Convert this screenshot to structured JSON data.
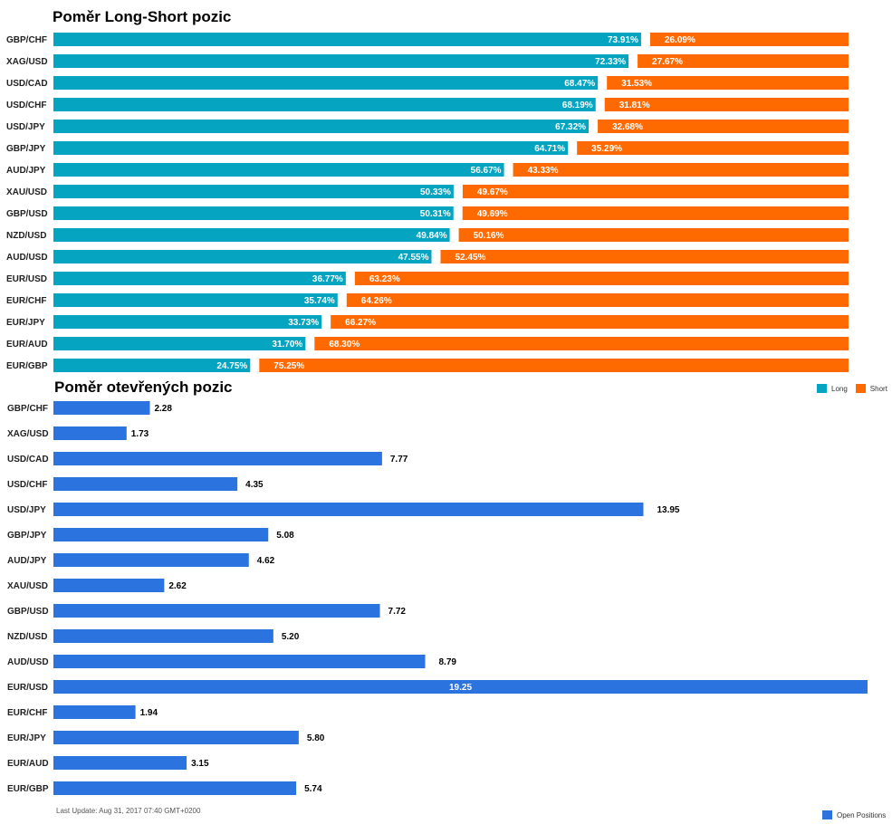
{
  "colors": {
    "long": "#05a4c0",
    "short": "#ff6a00",
    "open": "#2b73df"
  },
  "chart_data": [
    {
      "type": "bar",
      "orientation": "horizontal",
      "stacked": true,
      "title": "Poměr Long-Short pozic",
      "categories": [
        "GBP/CHF",
        "XAG/USD",
        "USD/CAD",
        "USD/CHF",
        "USD/JPY",
        "GBP/JPY",
        "AUD/JPY",
        "XAU/USD",
        "GBP/USD",
        "NZD/USD",
        "AUD/USD",
        "EUR/USD",
        "EUR/CHF",
        "EUR/JPY",
        "EUR/AUD",
        "EUR/GBP"
      ],
      "series": [
        {
          "name": "Long",
          "values": [
            73.91,
            72.33,
            68.47,
            68.19,
            67.32,
            64.71,
            56.67,
            50.33,
            50.31,
            49.84,
            47.55,
            36.77,
            35.74,
            33.73,
            31.7,
            24.75
          ],
          "labels": [
            "73.91%",
            "72.33%",
            "68.47%",
            "68.19%",
            "67.32%",
            "64.71%",
            "56.67%",
            "50.33%",
            "50.31%",
            "49.84%",
            "47.55%",
            "36.77%",
            "35.74%",
            "33.73%",
            "31.70%",
            "24.75%"
          ]
        },
        {
          "name": "Short",
          "values": [
            26.09,
            27.67,
            31.53,
            31.81,
            32.68,
            35.29,
            43.33,
            49.67,
            49.69,
            50.16,
            52.45,
            63.23,
            64.26,
            66.27,
            68.3,
            75.25
          ],
          "labels": [
            "26.09%",
            "27.67%",
            "31.53%",
            "31.81%",
            "32.68%",
            "35.29%",
            "43.33%",
            "49.67%",
            "49.69%",
            "50.16%",
            "52.45%",
            "63.23%",
            "64.26%",
            "66.27%",
            "68.30%",
            "75.25%"
          ]
        }
      ],
      "legend": "bottom-right"
    },
    {
      "type": "bar",
      "orientation": "horizontal",
      "title": "Poměr otevřených pozic",
      "categories": [
        "GBP/CHF",
        "XAG/USD",
        "USD/CAD",
        "USD/CHF",
        "USD/JPY",
        "GBP/JPY",
        "AUD/JPY",
        "XAU/USD",
        "GBP/USD",
        "NZD/USD",
        "AUD/USD",
        "EUR/USD",
        "EUR/CHF",
        "EUR/JPY",
        "EUR/AUD",
        "EUR/GBP"
      ],
      "series": [
        {
          "name": "Open Positions",
          "values": [
            2.28,
            1.73,
            7.77,
            4.35,
            13.95,
            5.08,
            4.62,
            2.62,
            7.72,
            5.2,
            8.79,
            19.25,
            1.94,
            5.8,
            3.15,
            5.74
          ],
          "labels": [
            "2.28",
            "1.73",
            "7.77",
            "4.35",
            "13.95",
            "5.08",
            "4.62",
            "2.62",
            "7.72",
            "5.20",
            "8.79",
            "19.25",
            "1.94",
            "5.80",
            "3.15",
            "5.74"
          ]
        }
      ],
      "xlim": [
        0,
        19.25
      ],
      "legend": "bottom-right"
    }
  ],
  "footer": {
    "last_update": "Last Update: Aug 31, 2017 07:40 GMT+0200"
  }
}
